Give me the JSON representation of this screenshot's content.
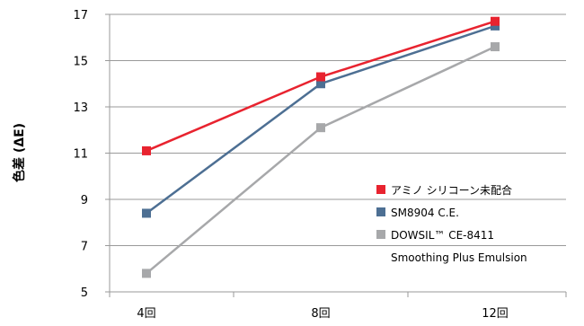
{
  "chart_data": {
    "type": "line",
    "categories": [
      "4回",
      "8回",
      "12回"
    ],
    "ylabel": "色差 (ΔE)",
    "xlabel": "",
    "ylim": [
      5,
      17
    ],
    "yticks": [
      5,
      7,
      9,
      11,
      13,
      15,
      17
    ],
    "grid": "horizontal",
    "legend_position": "bottom-right",
    "series": [
      {
        "name": "アミノ シリコーン未配合",
        "color": "#e8232f",
        "values": [
          11.1,
          14.3,
          16.7
        ]
      },
      {
        "name": "SM8904 C.E.",
        "color": "#4d6f93",
        "values": [
          8.4,
          14.0,
          16.5
        ]
      },
      {
        "name": "DOWSIL™ CE-8411",
        "name_line2": "Smoothing Plus Emulsion",
        "color": "#a7a8aa",
        "values": [
          5.8,
          12.1,
          15.6
        ]
      }
    ]
  }
}
